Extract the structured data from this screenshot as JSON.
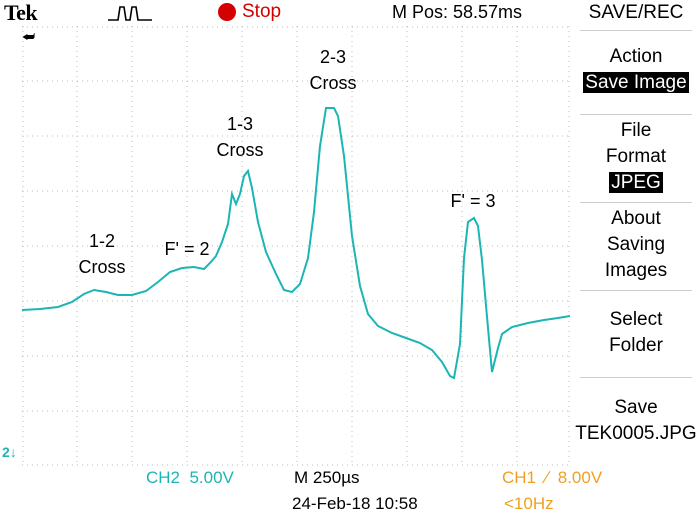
{
  "header": {
    "logo": "Tek",
    "status": "Stop",
    "mpos": "M Pos: 58.57ms"
  },
  "annotations": {
    "cross_1_2": [
      "1-2",
      "Cross"
    ],
    "f2": "F' = 2",
    "cross_1_3": [
      "1-3",
      "Cross"
    ],
    "cross_2_3": [
      "2-3",
      "Cross"
    ],
    "f3": "F' = 3"
  },
  "markers": {
    "ch2": "2"
  },
  "footer": {
    "ch2": "CH2  5.00V",
    "timebase": "M 250µs",
    "datetime": "24-Feb-18 10:58",
    "ch1": "CH1  ∕  8.00V",
    "freq": "<10Hz"
  },
  "menu": {
    "title": "SAVE/REC",
    "action_label": "Action",
    "action_value": "Save Image",
    "format_label_1": "File",
    "format_label_2": "Format",
    "format_value": "JPEG",
    "about_1": "About",
    "about_2": "Saving",
    "about_3": "Images",
    "select_1": "Select",
    "select_2": "Folder",
    "save_1": "Save",
    "save_2": "TEK0005.JPG"
  },
  "colors": {
    "trace": "#1cb5b5",
    "stop": "#d40000",
    "ch1": "#f0a020",
    "grid": "#bdbdbd"
  }
}
